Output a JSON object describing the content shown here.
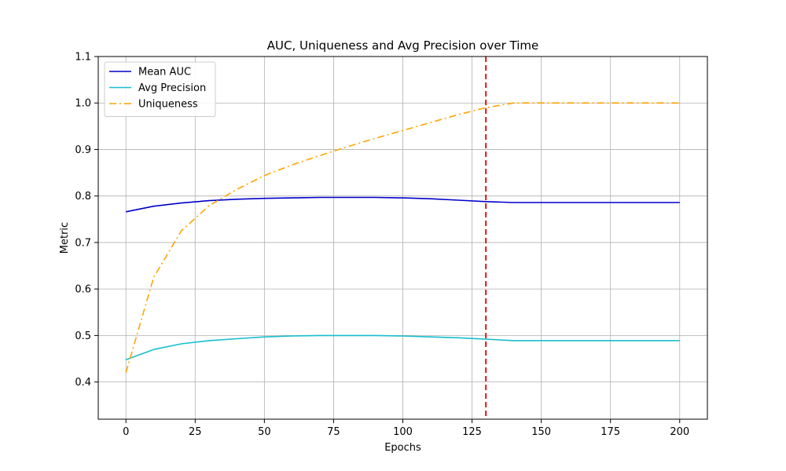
{
  "chart_data": {
    "type": "line",
    "title": "AUC, Uniqueness and Avg Precision over Time",
    "xlabel": "Epochs",
    "ylabel": "Metric",
    "xlim": [
      -10,
      210
    ],
    "ylim": [
      0.32,
      1.1
    ],
    "xticks": [
      0,
      25,
      50,
      75,
      100,
      125,
      150,
      175,
      200
    ],
    "yticks": [
      0.4,
      0.5,
      0.6,
      0.7,
      0.8,
      0.9,
      1.0,
      1.1
    ],
    "xtick_labels": [
      "0",
      "25",
      "50",
      "75",
      "100",
      "125",
      "150",
      "175",
      "200"
    ],
    "ytick_labels": [
      "0.4",
      "0.5",
      "0.6",
      "0.7",
      "0.8",
      "0.9",
      "1.0",
      "1.1"
    ],
    "grid": true,
    "legend_position": "top-left",
    "vline": {
      "x": 130,
      "color": "#dd0000",
      "style": "dashed"
    },
    "x": [
      0,
      10,
      20,
      30,
      40,
      50,
      60,
      70,
      80,
      90,
      100,
      110,
      120,
      130,
      140,
      150,
      160,
      170,
      180,
      190,
      200
    ],
    "series": [
      {
        "name": "Mean AUC",
        "color": "#0000cc",
        "style": "solid",
        "values": [
          0.766,
          0.778,
          0.785,
          0.79,
          0.793,
          0.795,
          0.796,
          0.797,
          0.797,
          0.797,
          0.796,
          0.794,
          0.791,
          0.788,
          0.786,
          0.786,
          0.786,
          0.786,
          0.786,
          0.786,
          0.786
        ]
      },
      {
        "name": "Avg Precision",
        "color": "#17becf",
        "style": "solid",
        "values": [
          0.448,
          0.47,
          0.482,
          0.489,
          0.493,
          0.497,
          0.499,
          0.5,
          0.5,
          0.5,
          0.499,
          0.497,
          0.495,
          0.492,
          0.489,
          0.489,
          0.489,
          0.489,
          0.489,
          0.489,
          0.489
        ]
      },
      {
        "name": "Uniqueness",
        "color": "#ffa500",
        "style": "dashdot",
        "values": [
          0.42,
          0.625,
          0.725,
          0.779,
          0.814,
          0.844,
          0.867,
          0.887,
          0.906,
          0.924,
          0.941,
          0.958,
          0.975,
          0.99,
          1.0,
          1.0,
          1.0,
          1.0,
          1.0,
          1.0,
          1.0
        ]
      }
    ]
  }
}
